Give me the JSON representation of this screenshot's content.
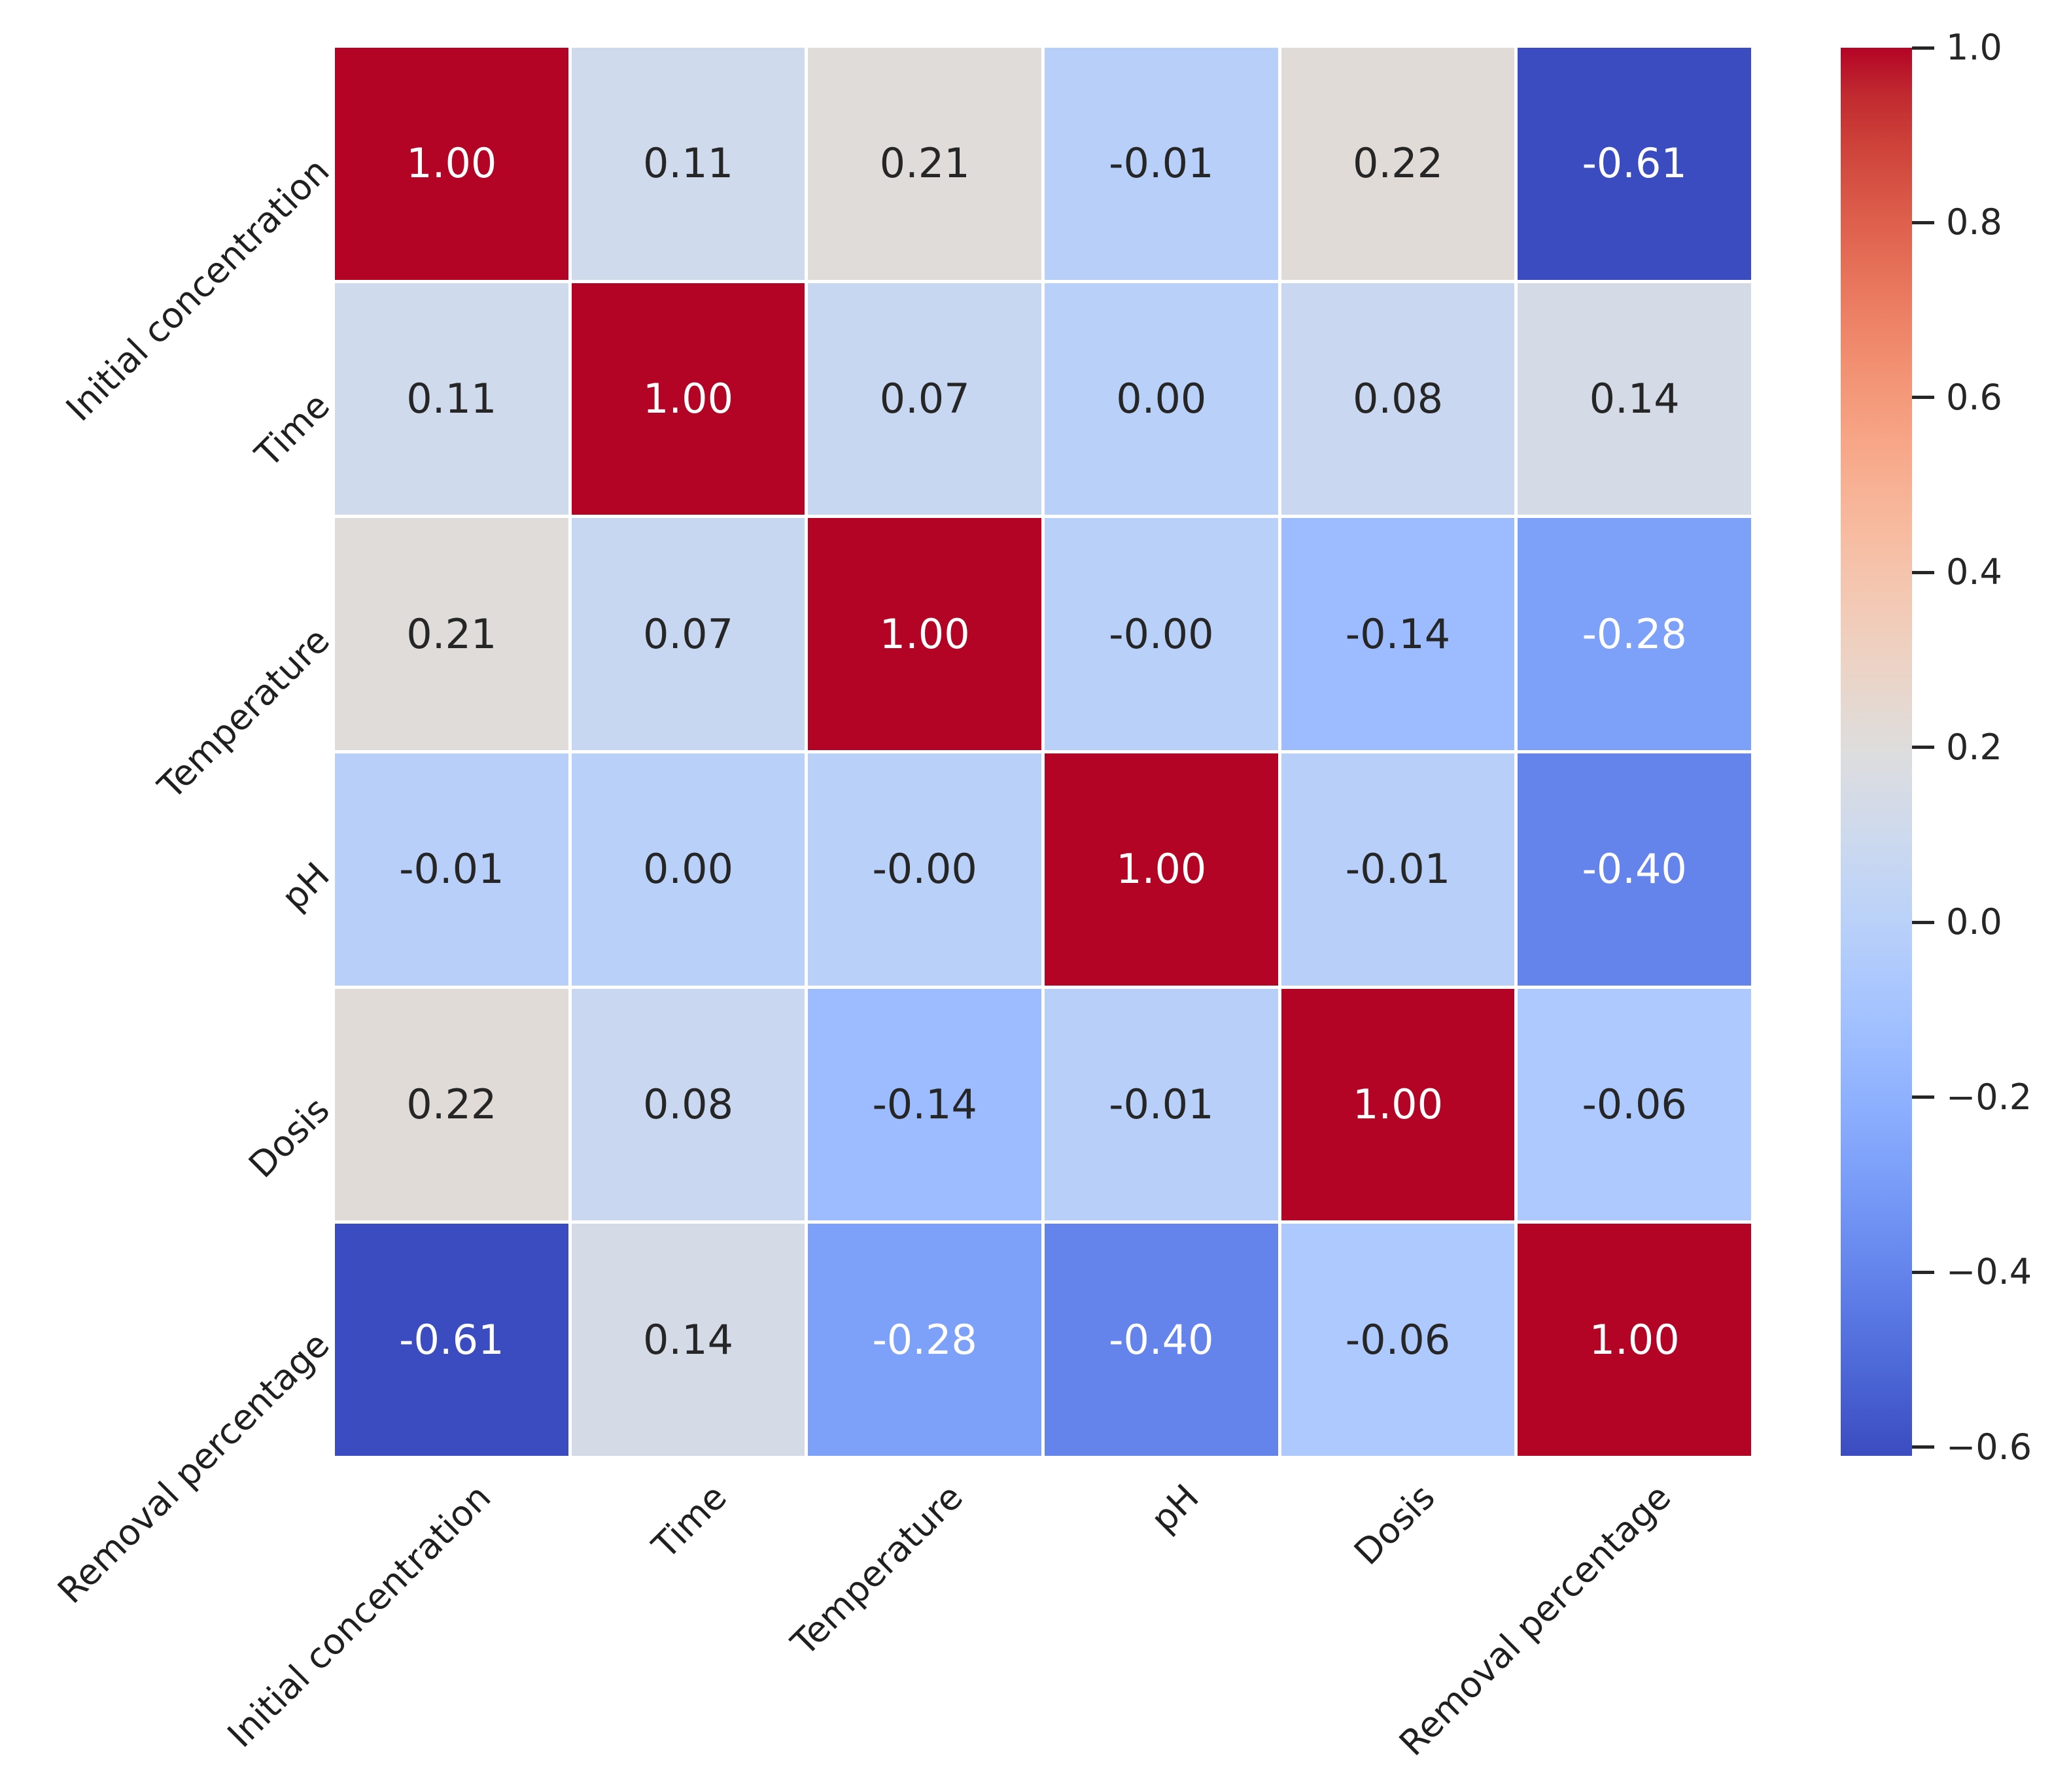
{
  "chart_data": {
    "type": "heatmap",
    "title": "",
    "variables": [
      "Initial concentration",
      "Time",
      "Temperature",
      "pH",
      "Dosis",
      "Removal percentage"
    ],
    "matrix": [
      [
        1.0,
        0.11,
        0.21,
        -0.01,
        0.22,
        -0.61
      ],
      [
        0.11,
        1.0,
        0.07,
        0.0,
        0.08,
        0.14
      ],
      [
        0.21,
        0.07,
        1.0,
        0.0,
        -0.14,
        -0.28
      ],
      [
        -0.01,
        0.0,
        0.0,
        1.0,
        -0.01,
        -0.4
      ],
      [
        0.22,
        0.08,
        -0.14,
        -0.01,
        1.0,
        -0.06
      ],
      [
        -0.61,
        0.14,
        -0.28,
        -0.4,
        -0.06,
        1.0
      ]
    ],
    "matrix_labels": [
      [
        "1.00",
        "0.11",
        "0.21",
        "-0.01",
        "0.22",
        "-0.61"
      ],
      [
        "0.11",
        "1.00",
        "0.07",
        "0.00",
        "0.08",
        "0.14"
      ],
      [
        "0.21",
        "0.07",
        "1.00",
        "-0.00",
        "-0.14",
        "-0.28"
      ],
      [
        "-0.01",
        "0.00",
        "-0.00",
        "1.00",
        "-0.01",
        "-0.40"
      ],
      [
        "0.22",
        "0.08",
        "-0.14",
        "-0.01",
        "1.00",
        "-0.06"
      ],
      [
        "-0.61",
        "0.14",
        "-0.28",
        "-0.40",
        "-0.06",
        "1.00"
      ]
    ],
    "vmin": -0.61,
    "vmax": 1.0,
    "colormap_name": "coolwarm",
    "colormap_anchors": [
      "#3b4cc0",
      "#445acc",
      "#4d68d7",
      "#5775e1",
      "#6282ea",
      "#6c8ef1",
      "#779af7",
      "#82a5fb",
      "#8db0fe",
      "#98b9ff",
      "#a3c2ff",
      "#aec9fd",
      "#b8d0f9",
      "#c2d5f4",
      "#ccd9ee",
      "#d5dbe6",
      "#dddddd",
      "#e5d8d1",
      "#ecd3c5",
      "#f1ccb9",
      "#f5c4ad",
      "#f7bba0",
      "#f7b194",
      "#f7a687",
      "#f49a7b",
      "#f18d6f",
      "#ec7f63",
      "#e57058",
      "#de604d",
      "#d55042",
      "#cb3e38",
      "#c0282f",
      "#b40426"
    ],
    "colorbar": {
      "position": "right",
      "tick_values": [
        1.0,
        0.8,
        0.6,
        0.4,
        0.2,
        0.0,
        -0.2,
        -0.4,
        -0.6
      ],
      "tick_labels": [
        "1.0",
        "0.8",
        "0.6",
        "0.4",
        "0.2",
        "0.0",
        "−0.2",
        "−0.4",
        "−0.6"
      ]
    },
    "grid_line_color": "#ffffff",
    "annotation_text_dark": "#262626",
    "annotation_text_light": "#ffffff",
    "tick_label_color": "#1f1f1f",
    "background_color": "#ffffff",
    "x_tick_rotation_deg": 45,
    "y_tick_rotation_deg": 45
  }
}
